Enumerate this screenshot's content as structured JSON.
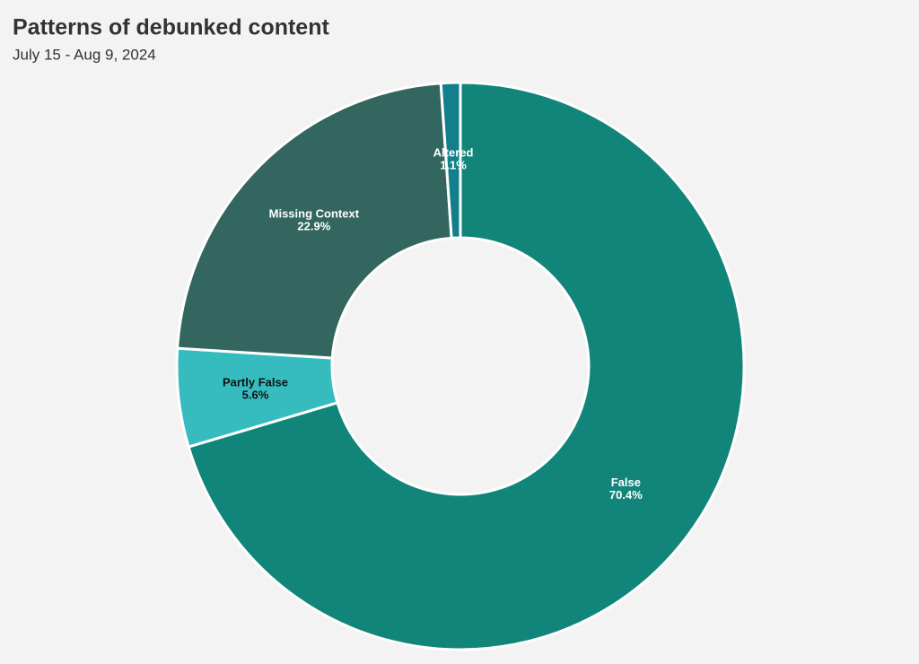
{
  "chart_data": {
    "type": "donut",
    "title": "Patterns of debunked content",
    "subtitle": "July 15 - Aug 9, 2024",
    "categories": [
      "False",
      "Partly False",
      "Missing Context",
      "Altered"
    ],
    "values": [
      70.4,
      5.6,
      22.9,
      1.1
    ],
    "value_labels": [
      "70.4%",
      "5.6%",
      "22.9%",
      "1.1%"
    ],
    "colors": [
      "#12857a",
      "#36bcbf",
      "#33665e",
      "#147f8c"
    ],
    "label_colors": [
      "#ffffff",
      "#111111",
      "#ffffff",
      "#ffffff"
    ]
  }
}
